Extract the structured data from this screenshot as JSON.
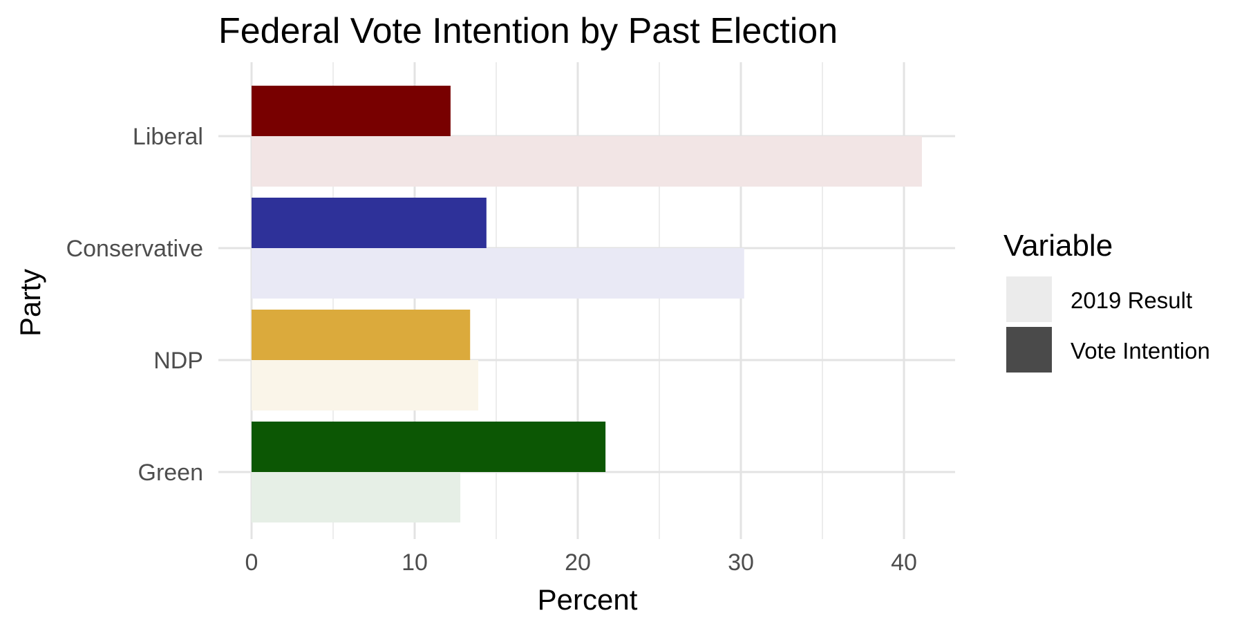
{
  "chart_data": {
    "type": "bar",
    "orientation": "horizontal",
    "title": "Federal Vote Intention by Past Election",
    "xlabel": "Percent",
    "ylabel": "Party",
    "xlim": [
      0,
      43
    ],
    "xticks": [
      0,
      10,
      20,
      30,
      40
    ],
    "grid": true,
    "categories": [
      "Liberal",
      "Conservative",
      "NDP",
      "Green"
    ],
    "series": [
      {
        "name": "2019 Result",
        "values": [
          41.1,
          30.2,
          13.9,
          12.8
        ],
        "colors": [
          "#f2e5e5",
          "#e9e9f5",
          "#faf5e9",
          "#e6efe6"
        ]
      },
      {
        "name": "Vote Intention",
        "values": [
          12.2,
          14.4,
          13.4,
          21.7
        ],
        "colors": [
          "#780000",
          "#2e3199",
          "#dbaa3c",
          "#0c5704"
        ]
      }
    ],
    "legend": {
      "title": "Variable",
      "position": "right",
      "colors": [
        "#ebebeb",
        "#4a4a4a"
      ]
    }
  }
}
